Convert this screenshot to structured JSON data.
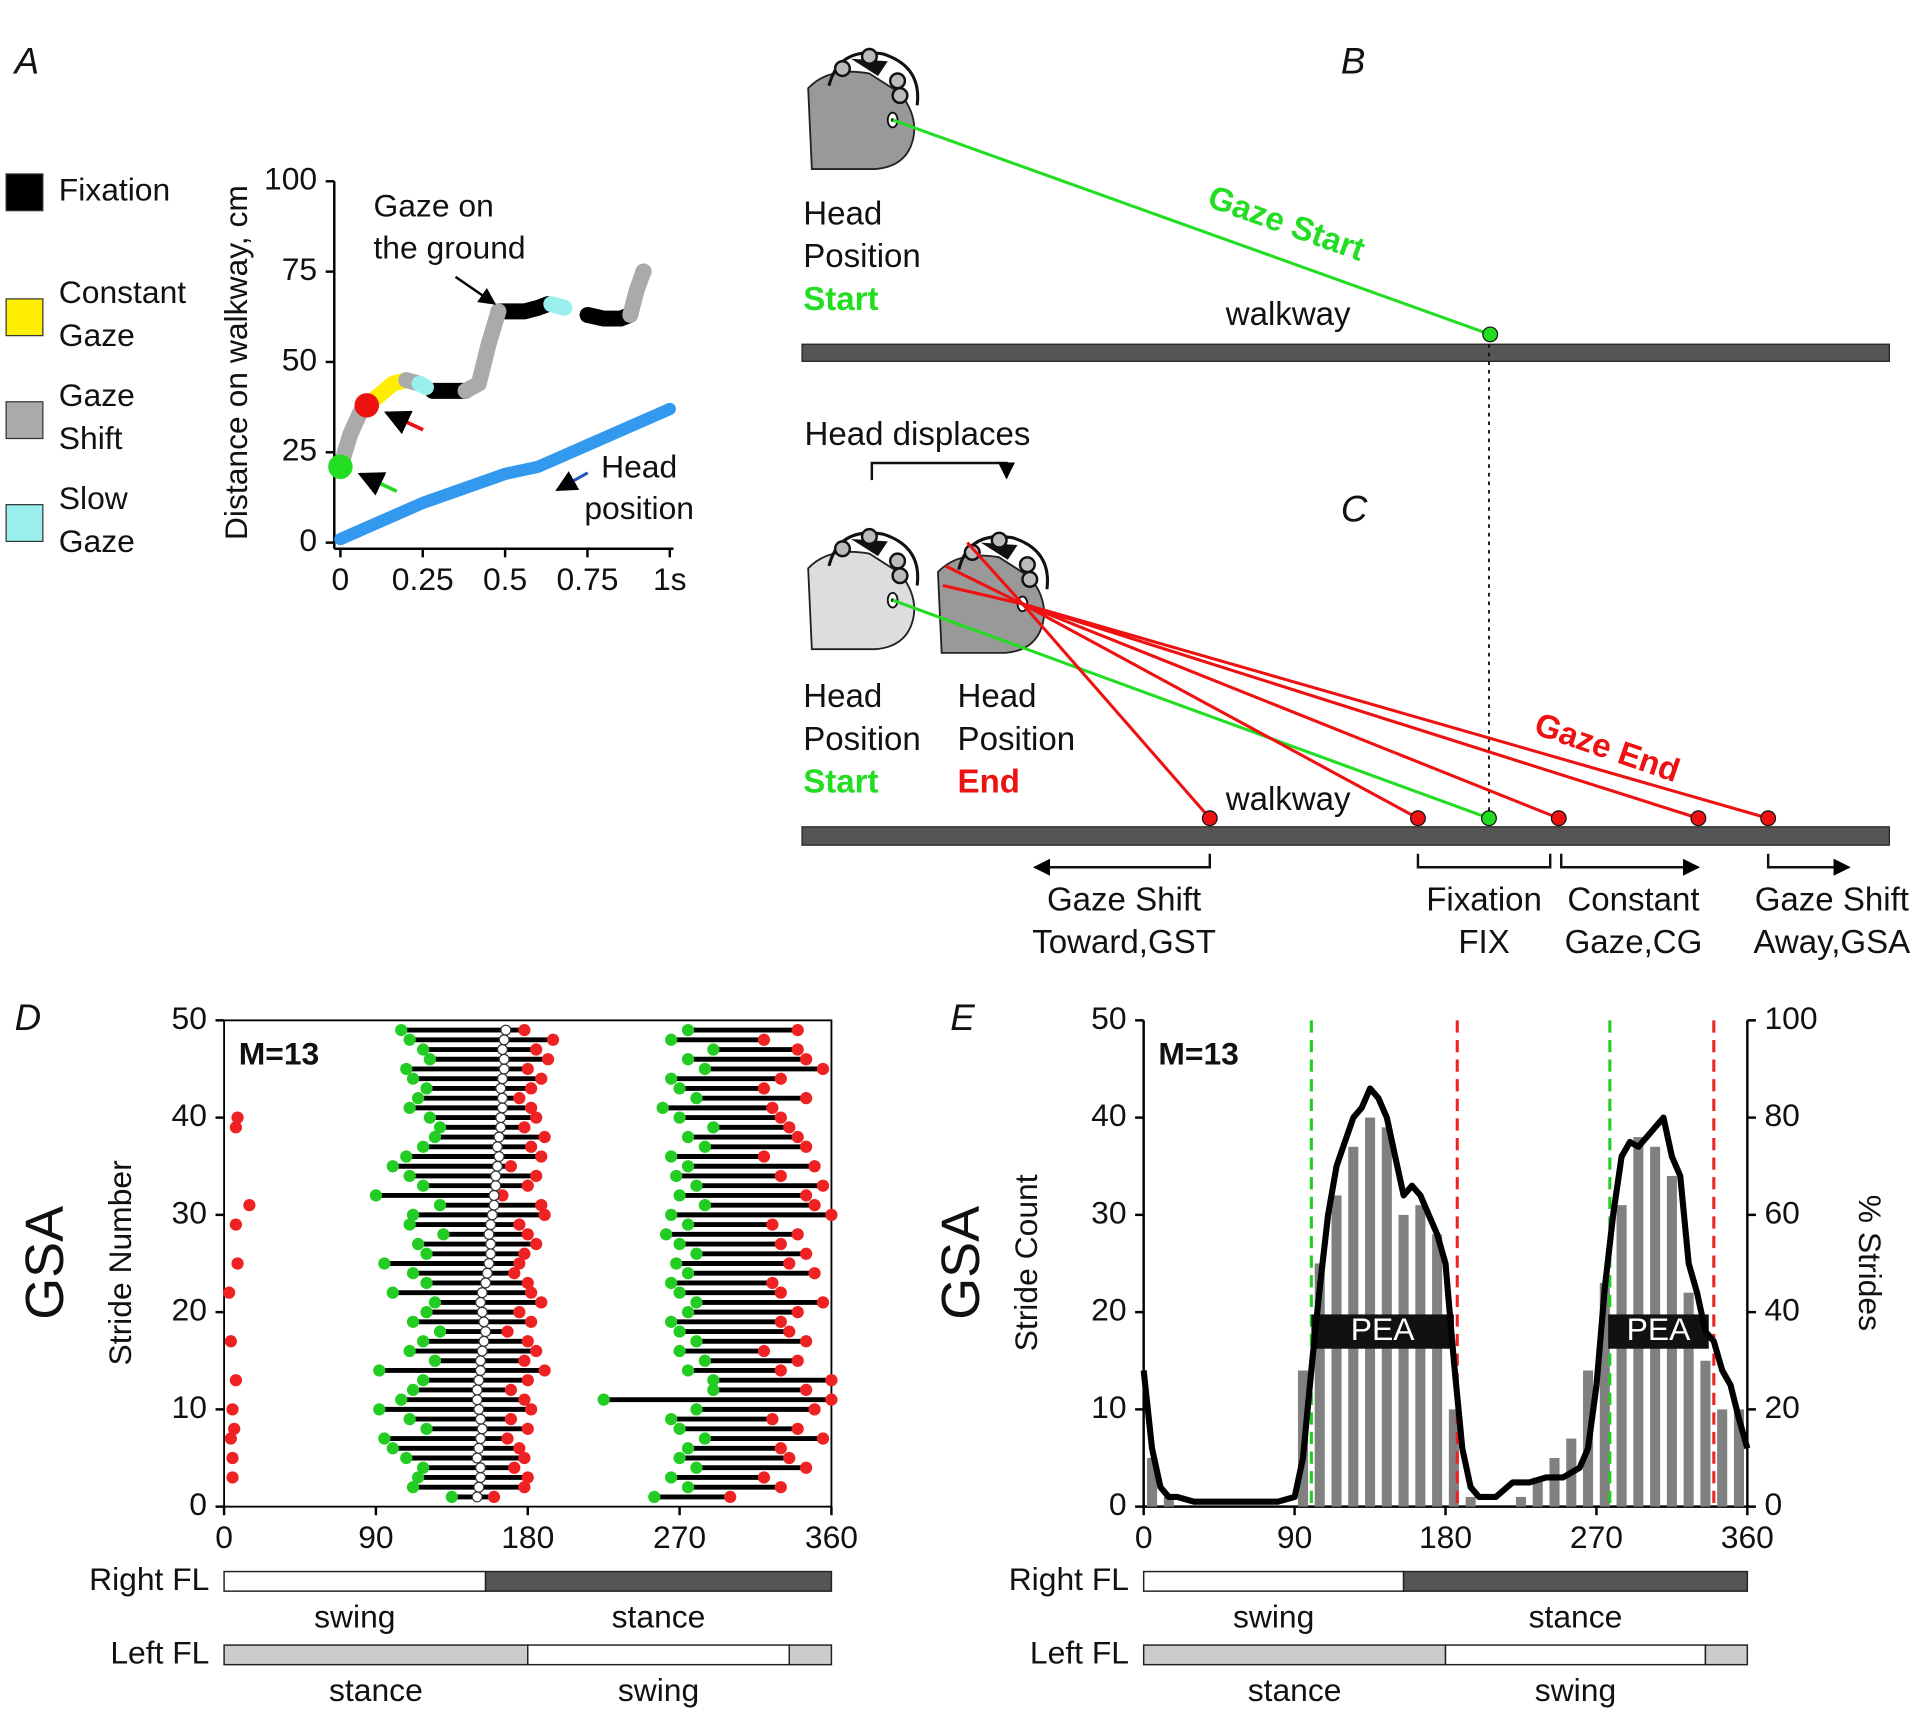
{
  "panel_labels": [
    "A",
    "B",
    "C",
    "D",
    "E"
  ],
  "chart_data": [
    {
      "type": "line",
      "y_label": "Distance on walkway, cm",
      "xlim": [
        0,
        1
      ],
      "ylim": [
        0,
        100
      ],
      "xticks": [
        0,
        0.25,
        0.5,
        0.75,
        {
          "value": 1,
          "label": "1s"
        }
      ],
      "yticks": [
        0,
        25,
        50,
        75,
        100
      ],
      "series": [
        {
          "name": "Fixation",
          "color": "#000000",
          "x": [
            0.28,
            0.32,
            0.36,
            0.38,
            0.45,
            0.48,
            0.52,
            0.56,
            0.6,
            0.63,
            0.7,
            0.75,
            0.8,
            0.85,
            0.88,
            0.9,
            0.92
          ],
          "values": [
            42,
            42,
            42,
            42,
            null,
            64,
            64,
            64,
            65,
            66,
            null,
            63,
            62,
            62,
            63,
            null,
            75
          ]
        },
        {
          "name": "Constant Gaze",
          "color": "#ffee00",
          "x": [
            0.08,
            0.12,
            0.16,
            0.2
          ],
          "values": [
            38,
            41,
            44,
            45
          ]
        },
        {
          "name": "Gaze Shift",
          "color": "#aaaaaa",
          "x": [
            0,
            0.03,
            0.06,
            0.08,
            0.1,
            0.2,
            0.24,
            0.3,
            0.38,
            0.42,
            0.45,
            0.48,
            0.6,
            0.88,
            0.9,
            0.92
          ],
          "values": [
            21,
            30,
            36,
            38,
            null,
            45,
            44,
            null,
            42,
            44,
            55,
            64,
            null,
            63,
            70,
            75
          ]
        },
        {
          "name": "Slow Gaze",
          "color": "#99eeee",
          "x": [
            0.24,
            0.26,
            0.45,
            0.64,
            0.68
          ],
          "values": [
            44,
            43,
            null,
            66,
            65
          ]
        },
        {
          "label": [
            "Head",
            "position"
          ],
          "color": "#3399ee",
          "x": [
            0,
            0.25,
            0.5,
            0.6,
            0.75,
            1
          ],
          "values": [
            1,
            11,
            19,
            21,
            27,
            37
          ]
        }
      ],
      "markers": [
        {
          "x": 0,
          "value": 21,
          "color": "#22dd22"
        },
        {
          "x": 0.08,
          "value": 38,
          "color": "#ee1111"
        }
      ],
      "annotation": [
        "Gaze on",
        "the ground"
      ]
    },
    {
      "type": "segments",
      "title": "GSA",
      "annotation": "M=13",
      "y_label": "Stride Number",
      "xlim": [
        0,
        360
      ],
      "ylim": [
        0,
        50
      ],
      "xticks": [
        0,
        90,
        180,
        270,
        360
      ],
      "yticks": [
        0,
        10,
        20,
        30,
        40,
        50
      ],
      "start_color": "#22cc22",
      "end_color": "#ee2222",
      "groups": [
        {
          "strides": [
            3,
            5,
            7,
            8,
            10,
            13,
            17,
            22,
            25,
            29,
            31,
            39,
            40
          ],
          "ends": [
            5,
            5,
            4,
            6,
            5,
            7,
            4,
            3,
            8,
            7,
            15,
            7,
            8
          ]
        },
        {
          "strides": [
            1,
            2,
            3,
            4,
            5,
            6,
            7,
            8,
            9,
            10,
            11,
            12,
            13,
            14,
            15,
            16,
            17,
            18,
            19,
            20,
            21,
            22,
            23,
            24,
            25,
            26,
            27,
            28,
            29,
            30,
            31,
            32,
            33,
            34,
            35,
            36,
            37,
            38,
            39,
            40,
            41,
            42,
            43,
            44,
            45,
            46,
            47,
            48,
            49
          ],
          "starts": [
            135,
            112,
            115,
            118,
            108,
            100,
            95,
            120,
            110,
            92,
            105,
            112,
            118,
            92,
            125,
            110,
            118,
            128,
            112,
            120,
            125,
            100,
            120,
            112,
            95,
            120,
            115,
            130,
            110,
            112,
            128,
            90,
            118,
            110,
            100,
            108,
            118,
            125,
            128,
            122,
            110,
            115,
            120,
            112,
            108,
            122,
            118,
            110,
            105
          ],
          "ends": [
            160,
            178,
            180,
            172,
            178,
            175,
            168,
            180,
            170,
            182,
            178,
            170,
            180,
            190,
            178,
            185,
            180,
            168,
            182,
            175,
            188,
            182,
            180,
            172,
            175,
            178,
            185,
            180,
            175,
            190,
            188,
            165,
            180,
            185,
            170,
            188,
            182,
            190,
            178,
            185,
            182,
            175,
            182,
            188,
            180,
            192,
            185,
            195,
            178
          ],
          "means": [
            150,
            151,
            152,
            152,
            150,
            151,
            152,
            153,
            152,
            151,
            150,
            150,
            151,
            152,
            152,
            153,
            154,
            155,
            154,
            153,
            152,
            153,
            155,
            156,
            157,
            158,
            158,
            157,
            158,
            159,
            160,
            160,
            161,
            161,
            162,
            163,
            162,
            163,
            164,
            164,
            165,
            165,
            164,
            165,
            166,
            166,
            165,
            166,
            167
          ]
        },
        {
          "strides": [
            1,
            2,
            3,
            4,
            5,
            6,
            7,
            8,
            9,
            10,
            11,
            12,
            13,
            14,
            15,
            16,
            17,
            18,
            19,
            20,
            21,
            22,
            23,
            24,
            25,
            26,
            27,
            28,
            29,
            30,
            31,
            32,
            33,
            34,
            35,
            36,
            37,
            38,
            39,
            40,
            41,
            42,
            43,
            44,
            45,
            46,
            47,
            48,
            49
          ],
          "starts": [
            255,
            275,
            265,
            280,
            270,
            275,
            285,
            270,
            265,
            280,
            225,
            290,
            290,
            275,
            285,
            270,
            280,
            270,
            265,
            275,
            280,
            270,
            265,
            275,
            268,
            280,
            270,
            262,
            275,
            265,
            285,
            270,
            280,
            268,
            275,
            265,
            285,
            275,
            290,
            270,
            260,
            280,
            270,
            265,
            285,
            275,
            290,
            265,
            275
          ],
          "ends": [
            300,
            330,
            320,
            345,
            335,
            330,
            355,
            340,
            325,
            350,
            360,
            345,
            360,
            330,
            340,
            320,
            345,
            335,
            330,
            340,
            355,
            330,
            325,
            350,
            335,
            345,
            330,
            340,
            325,
            360,
            350,
            345,
            355,
            330,
            350,
            320,
            345,
            340,
            335,
            330,
            325,
            345,
            320,
            330,
            355,
            345,
            340,
            320,
            340
          ]
        }
      ],
      "phases": [
        {
          "name": "Right FL",
          "segments": [
            {
              "label": "swing",
              "start": 0,
              "end": 155,
              "color": "#ffffff"
            },
            {
              "label": "stance",
              "start": 155,
              "end": 360,
              "color": "#555555"
            }
          ]
        },
        {
          "name": "Left FL",
          "segments": [
            {
              "label": "stance",
              "start": 0,
              "end": 180,
              "color": "#cccccc"
            },
            {
              "label": "swing",
              "start": 180,
              "end": 335,
              "color": "#ffffff"
            },
            {
              "label": null,
              "start": 335,
              "end": 360,
              "color": "#cccccc"
            }
          ]
        }
      ]
    },
    {
      "type": "bar",
      "title": "GSA",
      "annotation": "M=13",
      "y_label": "Stride Count",
      "y2_label": "% Strides",
      "xlim": [
        0,
        360
      ],
      "ylim": [
        0,
        50
      ],
      "y2lim": [
        0,
        100
      ],
      "xticks": [
        0,
        90,
        180,
        270,
        360
      ],
      "yticks": [
        0,
        10,
        20,
        30,
        40,
        50
      ],
      "y2ticks": [
        0,
        20,
        40,
        60,
        80,
        100
      ],
      "bars": {
        "color": "#808080",
        "x": [
          5,
          15,
          25,
          35,
          45,
          55,
          65,
          75,
          85,
          95,
          105,
          115,
          125,
          135,
          145,
          155,
          165,
          175,
          185,
          195,
          205,
          215,
          225,
          235,
          245,
          255,
          265,
          275,
          285,
          295,
          305,
          315,
          325,
          335,
          345,
          355
        ],
        "values": [
          5,
          1,
          0,
          0,
          0,
          0,
          0,
          0,
          0,
          14,
          25,
          32,
          37,
          40,
          39,
          30,
          31,
          28,
          10,
          1,
          0,
          0,
          1,
          3,
          5,
          7,
          14,
          23,
          31,
          38,
          37,
          34,
          22,
          15,
          10,
          10
        ]
      },
      "line": {
        "axis": "y2",
        "color": "#000000",
        "x": [
          0,
          5,
          10,
          15,
          20,
          30,
          40,
          60,
          80,
          90,
          95,
          100,
          105,
          110,
          115,
          120,
          125,
          130,
          135,
          140,
          145,
          150,
          155,
          160,
          165,
          170,
          175,
          180,
          185,
          190,
          195,
          200,
          210,
          220,
          230,
          240,
          250,
          260,
          265,
          270,
          275,
          280,
          285,
          290,
          295,
          300,
          305,
          310,
          315,
          320,
          325,
          330,
          335,
          340,
          345,
          350,
          355,
          360
        ],
        "values": [
          28,
          12,
          4,
          2,
          2,
          1,
          1,
          1,
          1,
          2,
          10,
          28,
          45,
          60,
          70,
          75,
          80,
          82,
          86,
          84,
          80,
          72,
          64,
          66,
          64,
          60,
          56,
          50,
          30,
          12,
          4,
          2,
          2,
          5,
          5,
          6,
          6,
          8,
          12,
          25,
          45,
          60,
          72,
          75,
          74,
          76,
          78,
          80,
          72,
          68,
          50,
          44,
          36,
          34,
          28,
          25,
          18,
          12
        ]
      },
      "bands": [
        {
          "label": "PEA",
          "start": 100,
          "end": 185,
          "value": 18
        },
        {
          "label": "PEA",
          "start": 277,
          "end": 337,
          "value": 18
        }
      ],
      "markers": [
        {
          "x": 100,
          "color": "#22cc22"
        },
        {
          "x": 187,
          "color": "#ee2222"
        },
        {
          "x": 278,
          "color": "#22cc22"
        },
        {
          "x": 340,
          "color": "#ee2222"
        }
      ],
      "phases": [
        {
          "name": "Right FL",
          "segments": [
            {
              "label": "swing",
              "start": 0,
              "end": 155,
              "color": "#ffffff"
            },
            {
              "label": "stance",
              "start": 155,
              "end": 360,
              "color": "#555555"
            }
          ]
        },
        {
          "name": "Left FL",
          "segments": [
            {
              "label": "stance",
              "start": 0,
              "end": 180,
              "color": "#cccccc"
            },
            {
              "label": "swing",
              "start": 180,
              "end": 335,
              "color": "#ffffff"
            },
            {
              "label": null,
              "start": 335,
              "end": 360,
              "color": "#cccccc"
            }
          ]
        }
      ]
    }
  ],
  "diagram": {
    "b": {
      "head_label": [
        "Head",
        "Position"
      ],
      "head_state": "Start",
      "gaze_label": "Gaze Start",
      "walkway": "walkway"
    },
    "c": {
      "motion": "Head displaces",
      "start_label": [
        "Head",
        "Position"
      ],
      "start_state": "Start",
      "end_label": [
        "Head",
        "Position"
      ],
      "end_state": "End",
      "gaze_label": "Gaze End",
      "walkway": "walkway",
      "zones": [
        {
          "label": [
            "Gaze Shift",
            "Toward,GST"
          ]
        },
        {
          "label": [
            "Fixation",
            "FIX"
          ]
        },
        {
          "label": [
            "Constant",
            "Gaze,CG"
          ]
        },
        {
          "label": [
            "Gaze Shift",
            "Away,GSA"
          ]
        }
      ]
    }
  }
}
